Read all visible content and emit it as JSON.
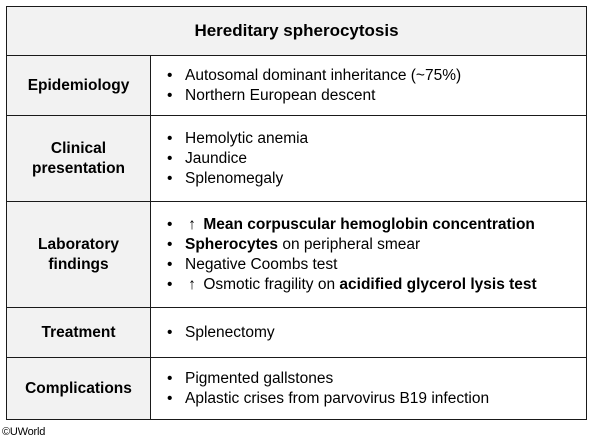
{
  "table": {
    "title": "Hereditary spherocytosis",
    "rows": {
      "epidemiology": {
        "label": "Epidemiology",
        "items": [
          "Autosomal dominant inheritance (~75%)",
          "Northern European descent"
        ]
      },
      "clinical": {
        "label_line1": "Clinical",
        "label_line2": "presentation",
        "items": [
          "Hemolytic anemia",
          "Jaundice",
          "Splenomegaly"
        ]
      },
      "laboratory": {
        "label_line1": "Laboratory",
        "label_line2": "findings",
        "item1_arrow": "↑",
        "item1_bold": "Mean corpuscular hemoglobin concentration",
        "item2_bold": "Spherocytes",
        "item2_rest": " on peripheral smear",
        "item3": "Negative Coombs test",
        "item4_arrow": "↑",
        "item4_text": "Osmotic fragility on ",
        "item4_bold": "acidified glycerol lysis test"
      },
      "treatment": {
        "label": "Treatment",
        "items": [
          "Splenectomy"
        ]
      },
      "complications": {
        "label": "Complications",
        "items": [
          "Pigmented gallstones",
          "Aplastic crises from parvovirus B19 infection"
        ]
      }
    }
  },
  "footer": {
    "copyright": "©UWorld"
  }
}
